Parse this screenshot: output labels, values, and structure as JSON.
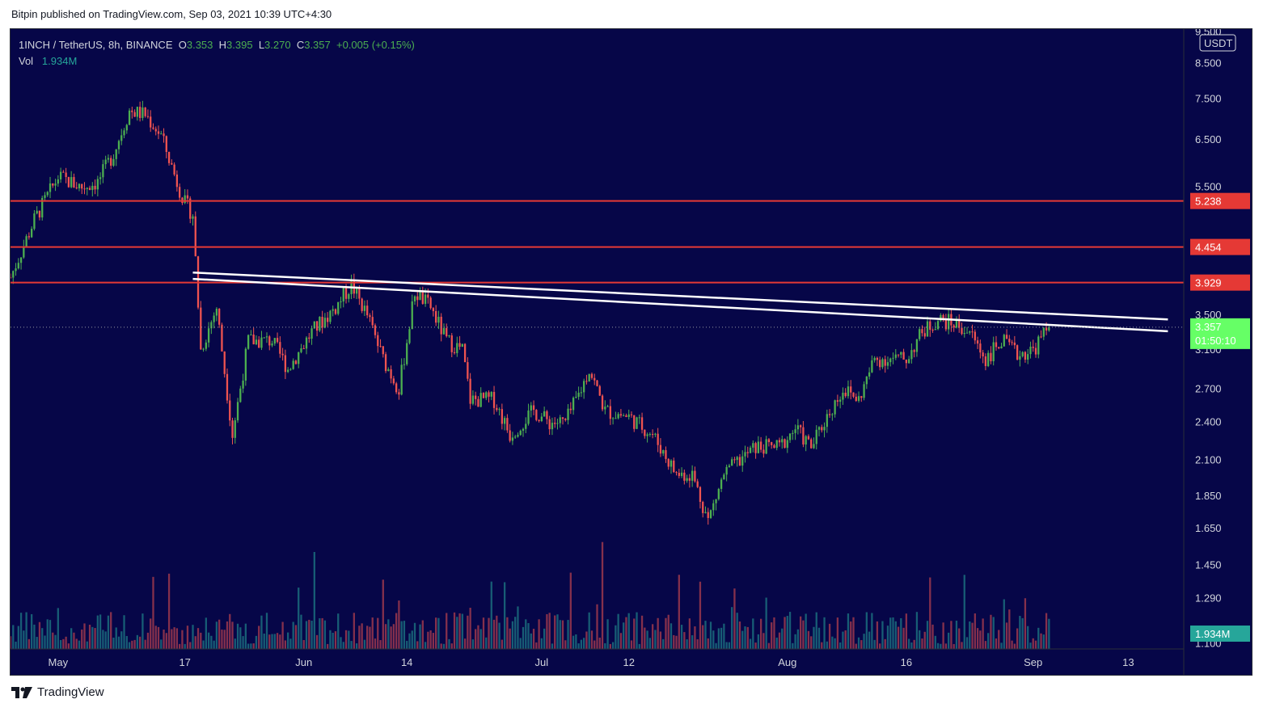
{
  "header": {
    "publish_line": "Bitpin published on TradingView.com, Sep 03, 2021 10:39 UTC+4:30"
  },
  "legend": {
    "symbol": "1INCH / TetherUS, 8h, BINANCE",
    "open_label": "O",
    "open": "3.353",
    "high_label": "H",
    "high": "3.395",
    "low_label": "L",
    "low": "3.270",
    "close_label": "C",
    "close": "3.357",
    "change": "+0.005 (+0.15%)",
    "vol_label": "Vol",
    "vol": "1.934M"
  },
  "footer": {
    "brand": "TradingView",
    "logo_icon": "tradingview-logo-icon"
  },
  "colors": {
    "background": "#060648",
    "up": "#4caf50",
    "down": "#ef5350",
    "vol_up": "#26a69a",
    "vol_down": "#ef5350",
    "resistance": "#e53935",
    "trendline": "#ffffff",
    "price_tag": "#66ff66",
    "vol_tag": "#26a69a"
  },
  "chart_data": {
    "type": "candlestick",
    "symbol": "1INCH / TetherUS",
    "interval": "8h",
    "exchange": "BINANCE",
    "y_scale": "log",
    "currency": "USDT",
    "y_ticks": [
      "9.500",
      "8.500",
      "7.500",
      "6.500",
      "5.500",
      "3.500",
      "3.100",
      "2.700",
      "2.400",
      "2.100",
      "1.850",
      "1.650",
      "1.450",
      "1.290",
      "1.100"
    ],
    "x_ticks": [
      "May",
      "17",
      "Jun",
      "14",
      "Jul",
      "12",
      "Aug",
      "16",
      "Sep",
      "13"
    ],
    "x_tick_dates": [
      "2021-05-01",
      "2021-05-17",
      "2021-06-01",
      "2021-06-14",
      "2021-07-01",
      "2021-07-12",
      "2021-08-01",
      "2021-08-16",
      "2021-09-01",
      "2021-09-13"
    ],
    "start_date": "2021-04-25",
    "last_date": "2021-09-03",
    "x_range": [
      "2021-04-25",
      "2021-09-20"
    ],
    "ylim": [
      1.08,
      9.6
    ],
    "horizontal_levels": [
      5.238,
      4.454,
      3.929
    ],
    "trendlines": [
      {
        "from": [
          "2021-05-18",
          4.07
        ],
        "to": [
          "2021-09-18",
          3.45
        ]
      },
      {
        "from": [
          "2021-05-18",
          3.98
        ],
        "to": [
          "2021-09-18",
          3.31
        ]
      }
    ],
    "current_price": "3.357",
    "countdown": "01:50:10",
    "current_volume": "1.934M",
    "last_close": 3.357,
    "close_path": [
      [
        "2021-04-25",
        4.0
      ],
      [
        "2021-04-28",
        4.9
      ],
      [
        "2021-05-01",
        5.7
      ],
      [
        "2021-05-04",
        5.5
      ],
      [
        "2021-05-06",
        5.6
      ],
      [
        "2021-05-08",
        6.2
      ],
      [
        "2021-05-10",
        7.2
      ],
      [
        "2021-05-12",
        7.1
      ],
      [
        "2021-05-14",
        6.6
      ],
      [
        "2021-05-16",
        5.6
      ],
      [
        "2021-05-17",
        5.2
      ],
      [
        "2021-05-18",
        5.0
      ],
      [
        "2021-05-19",
        3.1
      ],
      [
        "2021-05-21",
        3.6
      ],
      [
        "2021-05-23",
        2.3
      ],
      [
        "2021-05-25",
        3.2
      ],
      [
        "2021-05-28",
        3.2
      ],
      [
        "2021-05-30",
        2.9
      ],
      [
        "2021-06-02",
        3.3
      ],
      [
        "2021-06-05",
        3.6
      ],
      [
        "2021-06-07",
        3.9
      ],
      [
        "2021-06-09",
        3.5
      ],
      [
        "2021-06-11",
        3.0
      ],
      [
        "2021-06-13",
        2.7
      ],
      [
        "2021-06-15",
        3.8
      ],
      [
        "2021-06-17",
        3.6
      ],
      [
        "2021-06-19",
        3.2
      ],
      [
        "2021-06-21",
        3.1
      ],
      [
        "2021-06-22",
        2.6
      ],
      [
        "2021-06-25",
        2.6
      ],
      [
        "2021-06-27",
        2.3
      ],
      [
        "2021-06-30",
        2.5
      ],
      [
        "2021-07-02",
        2.4
      ],
      [
        "2021-07-04",
        2.4
      ],
      [
        "2021-07-06",
        2.7
      ],
      [
        "2021-07-07",
        2.9
      ],
      [
        "2021-07-09",
        2.5
      ],
      [
        "2021-07-12",
        2.45
      ],
      [
        "2021-07-15",
        2.3
      ],
      [
        "2021-07-18",
        2.0
      ],
      [
        "2021-07-20",
        2.0
      ],
      [
        "2021-07-22",
        1.7
      ],
      [
        "2021-07-24",
        2.0
      ],
      [
        "2021-07-26",
        2.1
      ],
      [
        "2021-07-28",
        2.2
      ],
      [
        "2021-07-31",
        2.2
      ],
      [
        "2021-08-02",
        2.35
      ],
      [
        "2021-08-04",
        2.2
      ],
      [
        "2021-08-06",
        2.45
      ],
      [
        "2021-08-08",
        2.7
      ],
      [
        "2021-08-10",
        2.6
      ],
      [
        "2021-08-12",
        3.0
      ],
      [
        "2021-08-14",
        3.0
      ],
      [
        "2021-08-16",
        3.0
      ],
      [
        "2021-08-18",
        3.3
      ],
      [
        "2021-08-20",
        3.45
      ],
      [
        "2021-08-22",
        3.4
      ],
      [
        "2021-08-24",
        3.3
      ],
      [
        "2021-08-26",
        3.0
      ],
      [
        "2021-08-28",
        3.2
      ],
      [
        "2021-08-30",
        3.05
      ],
      [
        "2021-09-01",
        3.1
      ],
      [
        "2021-09-03",
        3.357
      ]
    ]
  }
}
